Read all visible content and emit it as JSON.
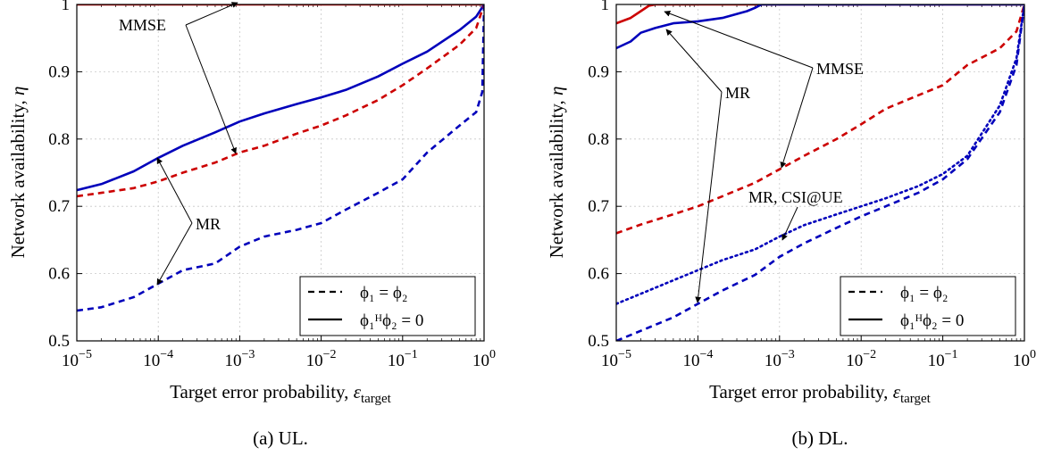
{
  "chart_data": [
    {
      "type": "line",
      "caption": "(a) UL.",
      "xlabel_text": "Target error probability, ",
      "xlabel_symbol": "ε",
      "xlabel_sub": "target",
      "ylabel_text": "Network availability, ",
      "ylabel_symbol": "η",
      "xscale": "log",
      "xlim": [
        1e-05,
        1
      ],
      "ylim": [
        0.5,
        1
      ],
      "x_ticks": [
        {
          "base": "10",
          "exp": "−5"
        },
        {
          "base": "10",
          "exp": "−4"
        },
        {
          "base": "10",
          "exp": "−3"
        },
        {
          "base": "10",
          "exp": "−2"
        },
        {
          "base": "10",
          "exp": "−1"
        },
        {
          "base": "10",
          "exp": "0"
        }
      ],
      "y_ticks": [
        "0.5",
        "0.6",
        "0.7",
        "0.8",
        "0.9",
        "1"
      ],
      "grid": true,
      "legend_placement": "bottom-right",
      "legend": [
        {
          "style": "dashed",
          "label": "ϕ₁ = ϕ₂"
        },
        {
          "style": "solid",
          "label": "ϕ₁ᴴϕ₂ = 0"
        }
      ],
      "series": [
        {
          "color": "#cc0000",
          "style": "solid",
          "x": [
            1e-05,
            0.9,
            1
          ],
          "y": [
            1,
            1,
            1
          ]
        },
        {
          "color": "#0000bb",
          "style": "solid",
          "x": [
            1e-05,
            2e-05,
            5e-05,
            0.0001,
            0.0002,
            0.0005,
            0.001,
            0.002,
            0.005,
            0.01,
            0.02,
            0.05,
            0.1,
            0.2,
            0.5,
            0.8,
            1
          ],
          "y": [
            0.724,
            0.733,
            0.752,
            0.772,
            0.79,
            0.81,
            0.826,
            0.838,
            0.852,
            0.862,
            0.873,
            0.893,
            0.912,
            0.93,
            0.962,
            0.982,
            1
          ]
        },
        {
          "color": "#cc0000",
          "style": "dashed",
          "x": [
            1e-05,
            2e-05,
            5e-05,
            0.0001,
            0.0002,
            0.0005,
            0.001,
            0.002,
            0.005,
            0.01,
            0.02,
            0.05,
            0.1,
            0.2,
            0.5,
            0.8,
            1
          ],
          "y": [
            0.715,
            0.72,
            0.727,
            0.737,
            0.75,
            0.765,
            0.78,
            0.79,
            0.808,
            0.82,
            0.835,
            0.858,
            0.88,
            0.905,
            0.94,
            0.965,
            1
          ]
        },
        {
          "color": "#0000bb",
          "style": "dashed",
          "x": [
            1e-05,
            2e-05,
            5e-05,
            0.0001,
            0.0002,
            0.0005,
            0.001,
            0.002,
            0.005,
            0.01,
            0.02,
            0.05,
            0.1,
            0.2,
            0.5,
            0.8,
            0.95,
            1
          ],
          "y": [
            0.545,
            0.55,
            0.565,
            0.585,
            0.605,
            0.615,
            0.64,
            0.655,
            0.665,
            0.675,
            0.695,
            0.72,
            0.74,
            0.78,
            0.82,
            0.84,
            0.87,
            1
          ]
        }
      ],
      "annotations": [
        {
          "text": "MMSE",
          "target_x": 0.001,
          "target_y": 0.78,
          "target2_x": 0.001,
          "target2_y": 1
        },
        {
          "text": "MR",
          "target_x": 0.0001,
          "target_y": 0.772,
          "target2_x": 0.0001,
          "target2_y": 0.585
        }
      ]
    },
    {
      "type": "line",
      "caption": "(b) DL.",
      "xlabel_text": "Target error probability, ",
      "xlabel_symbol": "ε",
      "xlabel_sub": "target",
      "ylabel_text": "Network availability, ",
      "ylabel_symbol": "η",
      "xscale": "log",
      "xlim": [
        1e-05,
        1
      ],
      "ylim": [
        0.5,
        1
      ],
      "x_ticks": [
        {
          "base": "10",
          "exp": "−5"
        },
        {
          "base": "10",
          "exp": "−4"
        },
        {
          "base": "10",
          "exp": "−3"
        },
        {
          "base": "10",
          "exp": "−2"
        },
        {
          "base": "10",
          "exp": "−1"
        },
        {
          "base": "10",
          "exp": "0"
        }
      ],
      "y_ticks": [
        "0.5",
        "0.6",
        "0.7",
        "0.8",
        "0.9",
        "1"
      ],
      "grid": true,
      "legend_placement": "bottom-right",
      "legend": [
        {
          "style": "dashed",
          "label": "ϕ₁ = ϕ₂"
        },
        {
          "style": "solid",
          "label": "ϕ₁ᴴϕ₂ = 0"
        }
      ],
      "series": [
        {
          "color": "#cc0000",
          "style": "solid",
          "x": [
            1e-05,
            1.5e-05,
            2e-05,
            2.5e-05,
            3e-05,
            1
          ],
          "y": [
            0.972,
            0.98,
            0.99,
            0.998,
            1,
            1
          ]
        },
        {
          "color": "#0000bb",
          "style": "solid",
          "x": [
            1e-05,
            1.5e-05,
            2e-05,
            3e-05,
            5e-05,
            0.0001,
            0.0002,
            0.0004,
            0.0005,
            0.0006,
            1
          ],
          "y": [
            0.935,
            0.945,
            0.958,
            0.965,
            0.972,
            0.975,
            0.98,
            0.99,
            0.995,
            1,
            1
          ]
        },
        {
          "color": "#cc0000",
          "style": "dashed",
          "x": [
            1e-05,
            2e-05,
            5e-05,
            0.0001,
            0.0002,
            0.0005,
            0.001,
            0.002,
            0.005,
            0.01,
            0.02,
            0.05,
            0.1,
            0.2,
            0.5,
            0.8,
            1
          ],
          "y": [
            0.66,
            0.673,
            0.688,
            0.7,
            0.715,
            0.735,
            0.755,
            0.775,
            0.8,
            0.822,
            0.845,
            0.865,
            0.88,
            0.91,
            0.935,
            0.96,
            1
          ]
        },
        {
          "color": "#0000bb",
          "style": "dotted",
          "x": [
            1e-05,
            2e-05,
            5e-05,
            0.0001,
            0.0002,
            0.0005,
            0.001,
            0.002,
            0.005,
            0.01,
            0.02,
            0.05,
            0.1,
            0.2,
            0.5,
            0.8,
            1
          ],
          "y": [
            0.555,
            0.57,
            0.59,
            0.605,
            0.62,
            0.636,
            0.655,
            0.672,
            0.688,
            0.7,
            0.712,
            0.73,
            0.748,
            0.775,
            0.85,
            0.92,
            1
          ]
        },
        {
          "color": "#0000bb",
          "style": "dashed",
          "x": [
            1e-05,
            2e-05,
            5e-05,
            0.0001,
            0.0002,
            0.0005,
            0.001,
            0.002,
            0.005,
            0.01,
            0.02,
            0.05,
            0.1,
            0.2,
            0.5,
            0.8,
            1
          ],
          "y": [
            0.5,
            0.515,
            0.535,
            0.555,
            0.575,
            0.598,
            0.625,
            0.645,
            0.668,
            0.685,
            0.7,
            0.72,
            0.74,
            0.77,
            0.84,
            0.91,
            1
          ]
        }
      ],
      "annotations": [
        {
          "text": "MMSE",
          "target_x": 0.001,
          "target_y": 0.755,
          "target2_x": 2e-05,
          "target2_y": 0.99
        },
        {
          "text": "MR",
          "target_x": 0.0001,
          "target_y": 0.555,
          "target2_x": 2e-05,
          "target2_y": 0.96
        },
        {
          "text": "MR, CSI@UE",
          "target_x": 0.001,
          "target_y": 0.655
        }
      ]
    }
  ]
}
